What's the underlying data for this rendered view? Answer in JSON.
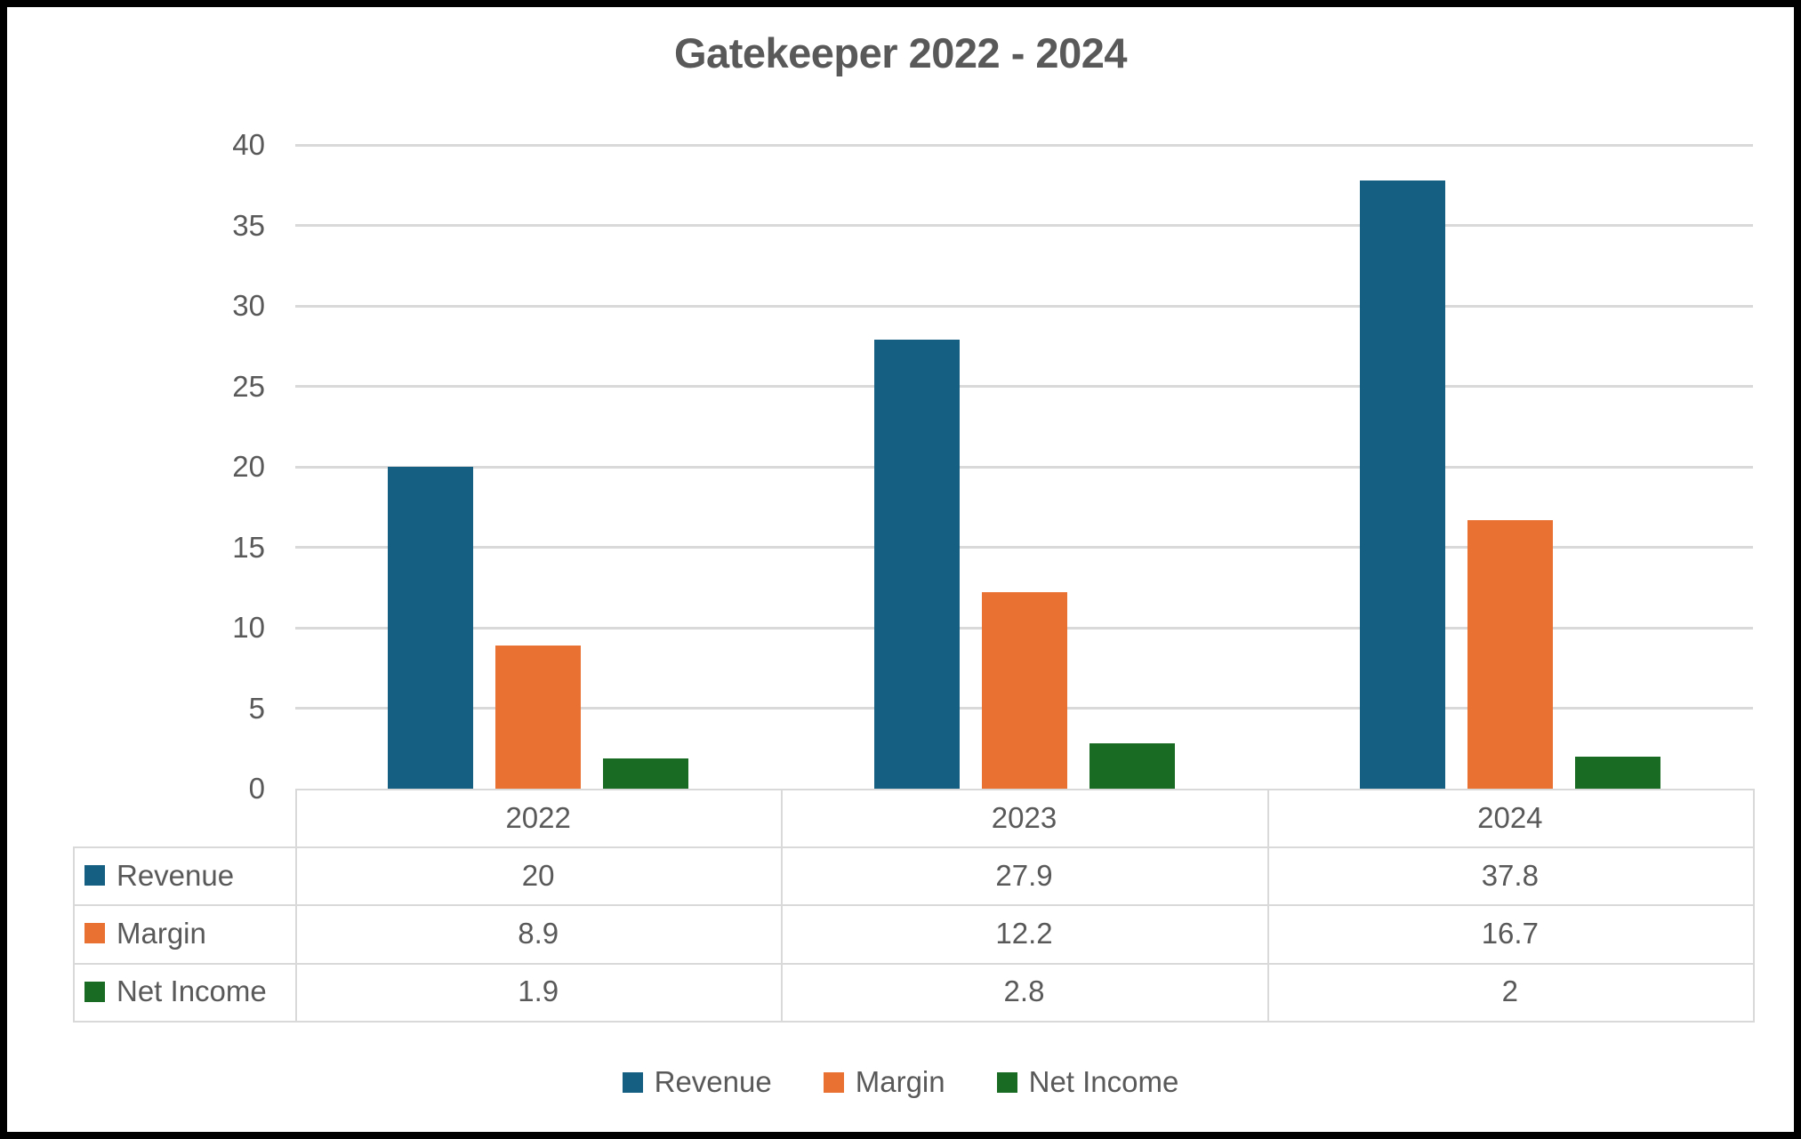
{
  "colors": {
    "revenue": "#156082",
    "margin": "#E97132",
    "net_income": "#196B24",
    "text": "#595959",
    "gridline": "#D9D9D9",
    "table_border": "#D9D9D9",
    "frame": "#000000",
    "background": "#FFFFFF"
  },
  "chart_data": {
    "type": "bar",
    "title": "Gatekeeper 2022 - 2024",
    "categories": [
      "2022",
      "2023",
      "2024"
    ],
    "series": [
      {
        "name": "Revenue",
        "color": "#156082",
        "values": [
          20,
          27.9,
          37.8
        ]
      },
      {
        "name": "Margin",
        "color": "#E97132",
        "values": [
          8.9,
          12.2,
          16.7
        ]
      },
      {
        "name": "Net Income",
        "color": "#196B24",
        "values": [
          1.9,
          2.8,
          2
        ]
      }
    ],
    "xlabel": "",
    "ylabel": "",
    "ylim": [
      0,
      40
    ],
    "ytick_step": 5,
    "ytick_labels": [
      "0",
      "5",
      "10",
      "15",
      "20",
      "25",
      "30",
      "35",
      "40"
    ],
    "grid": true,
    "legend_position": "bottom",
    "legend_items": [
      "Revenue",
      "Margin",
      "Net Income"
    ],
    "data_table_shown": true
  }
}
